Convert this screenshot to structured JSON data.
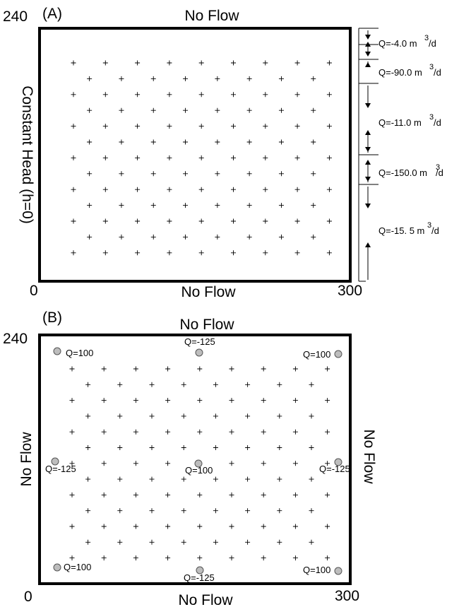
{
  "panel_a": {
    "tag": "(A)",
    "top": "No Flow",
    "bottom": "No Flow",
    "left": "Constant Head (h=0)",
    "y_max": "240",
    "x_min": "0",
    "x_max": "300",
    "fluxes": [
      {
        "text": "Q=-4.0  m",
        "exp": "3",
        "unit": "/d"
      },
      {
        "text": "Q=-90.0  m",
        "exp": "3",
        "unit": "/d"
      },
      {
        "text": "Q=-11.0  m",
        "exp": "3",
        "unit": "/d"
      },
      {
        "text": "Q=-150.0  m",
        "exp": "3",
        "unit": "/d"
      },
      {
        "text": "Q=-15. 5  m",
        "exp": "3",
        "unit": "/d"
      }
    ]
  },
  "panel_b": {
    "tag": "(B)",
    "top": "No Flow",
    "bottom": "No Flow",
    "left": "No Flow",
    "right": "No Flow",
    "y_max": "240",
    "x_min": "0",
    "x_max": "300",
    "wells": [
      {
        "label": "Q=100"
      },
      {
        "label": "Q=-125"
      },
      {
        "label": "Q=100"
      },
      {
        "label": "Q=-125"
      },
      {
        "label": "Q=100"
      },
      {
        "label": "Q=-125"
      },
      {
        "label": "Q=100"
      },
      {
        "label": "Q=-125"
      },
      {
        "label": "Q=100"
      }
    ]
  },
  "colors": {
    "well_fill": "#bdbdbd",
    "frame": "#000000"
  }
}
